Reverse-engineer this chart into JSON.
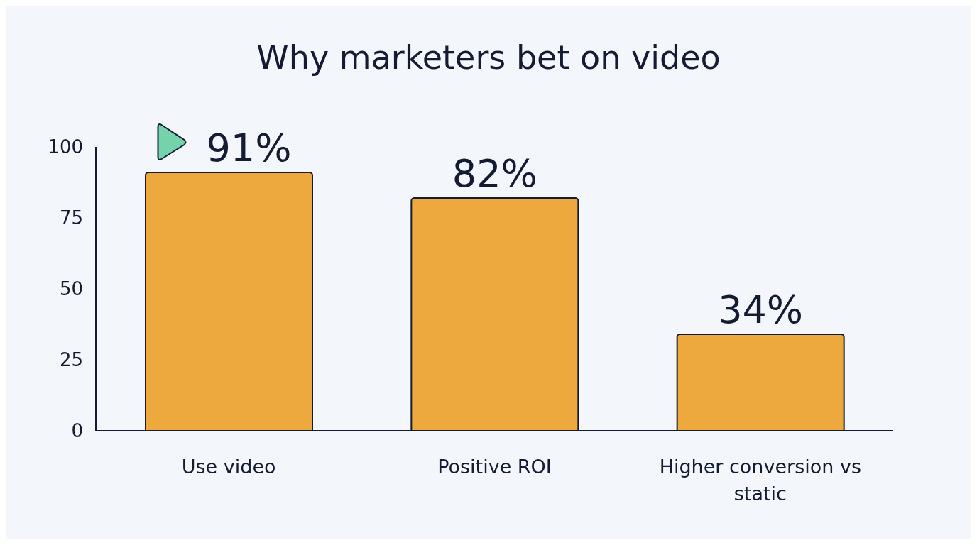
{
  "chart_data": {
    "type": "bar",
    "title": "Why marketers bet on video",
    "categories": [
      "Use video",
      "Positive ROI",
      "Higher conversion vs static"
    ],
    "values": [
      91,
      82,
      34
    ],
    "color": "#eda83e",
    "value_labels": [
      "91%",
      "82%",
      "34%"
    ],
    "ylim": [
      0,
      100
    ],
    "yticks": [
      0,
      25,
      50,
      75,
      100
    ],
    "grid": false
  }
}
